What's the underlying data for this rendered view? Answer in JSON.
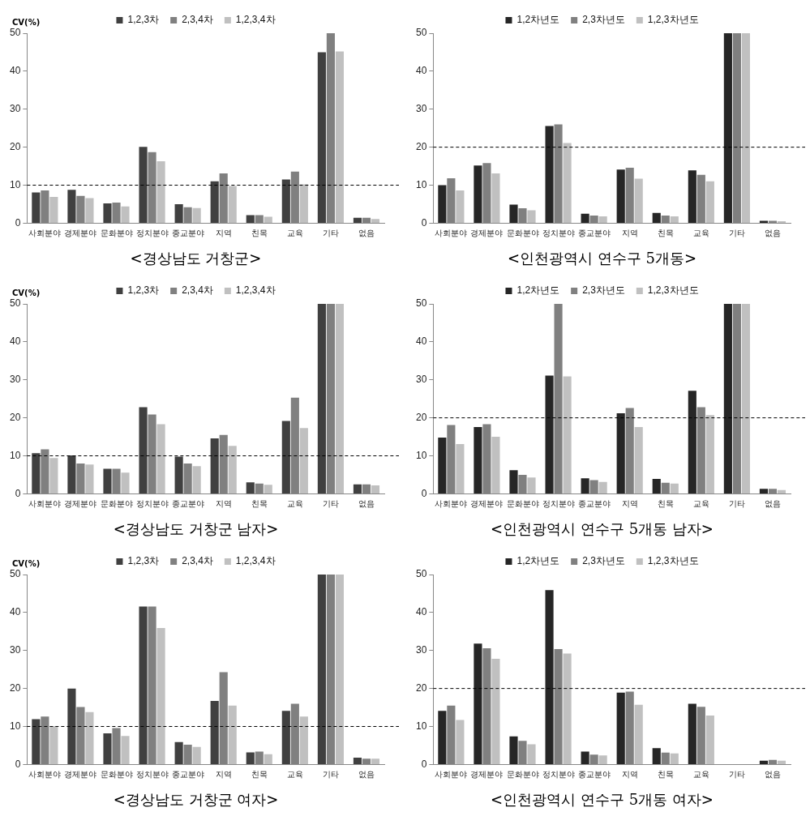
{
  "chart_data": [
    {
      "type": "bar",
      "title": "<경상남도 거창군>",
      "ylabel": "CV(%)",
      "categories": [
        "사회분야",
        "경제분야",
        "문화분야",
        "정치분야",
        "종교분야",
        "지역",
        "친목",
        "교육",
        "기타",
        "없음"
      ],
      "series": [
        {
          "name": "1,2,3차",
          "color": "#404040",
          "values": [
            8.1,
            8.8,
            5.2,
            20.1,
            5.0,
            11.0,
            2.1,
            11.5,
            45,
            1.4
          ]
        },
        {
          "name": "2,3,4차",
          "color": "#808080",
          "values": [
            8.6,
            7.2,
            5.4,
            18.7,
            4.2,
            13.1,
            2.1,
            13.6,
            50,
            1.4
          ]
        },
        {
          "name": "1,2,3,4차",
          "color": "#c0c0c0",
          "values": [
            6.9,
            6.6,
            4.4,
            16.3,
            4.0,
            9.8,
            1.7,
            10.2,
            45.2,
            1.1
          ]
        }
      ],
      "ylim": [
        0,
        50
      ],
      "yticks": [
        0,
        10,
        20,
        30,
        40,
        50
      ],
      "grid": false,
      "legend": "top",
      "ref_lines": [
        {
          "axis": "y",
          "value": 10,
          "line_style": "dashed",
          "color": "#000000"
        }
      ]
    },
    {
      "type": "bar",
      "title": "<인천광역시 연수구 5개동>",
      "categories": [
        "사회분야",
        "경제분야",
        "문화분야",
        "정치분야",
        "종교분야",
        "지역",
        "친목",
        "교육",
        "기타",
        "없음"
      ],
      "series": [
        {
          "name": "1,2차년도",
          "color": "#262626",
          "values": [
            10.0,
            15.2,
            4.9,
            25.6,
            2.5,
            14.1,
            2.7,
            13.9,
            50,
            0.6
          ]
        },
        {
          "name": "2,3차년도",
          "color": "#808080",
          "values": [
            11.8,
            15.8,
            3.9,
            26.0,
            2.0,
            14.6,
            2.0,
            12.7,
            50,
            0.6
          ]
        },
        {
          "name": "1,2,3차년도",
          "color": "#c0c0c0",
          "values": [
            8.6,
            13.1,
            3.4,
            21.1,
            1.8,
            11.7,
            1.8,
            11.0,
            50,
            0.5
          ]
        }
      ],
      "ylim": [
        0,
        50
      ],
      "yticks": [
        0,
        10,
        20,
        30,
        40,
        50
      ],
      "grid": false,
      "legend": "top",
      "ref_lines": [
        {
          "axis": "y",
          "value": 20,
          "line_style": "dashed",
          "color": "#000000"
        }
      ]
    },
    {
      "type": "bar",
      "title": "<경상남도 거창군 남자>",
      "ylabel": "CV(%)",
      "categories": [
        "사회분야",
        "경제분야",
        "문화분야",
        "정치분야",
        "종교분야",
        "지역",
        "친목",
        "교육",
        "기타",
        "없음"
      ],
      "series": [
        {
          "name": "1,2,3차",
          "color": "#404040",
          "values": [
            10.7,
            10.1,
            6.6,
            22.8,
            9.8,
            14.6,
            3.0,
            19.2,
            50,
            2.5
          ]
        },
        {
          "name": "2,3,4차",
          "color": "#808080",
          "values": [
            11.7,
            8.0,
            6.6,
            20.9,
            8.0,
            15.5,
            2.7,
            25.3,
            50,
            2.5
          ]
        },
        {
          "name": "1,2,3,4차",
          "color": "#c0c0c0",
          "values": [
            9.4,
            7.7,
            5.6,
            18.3,
            7.3,
            12.6,
            2.4,
            17.3,
            50,
            2.2
          ]
        }
      ],
      "ylim": [
        0,
        50
      ],
      "yticks": [
        0,
        10,
        20,
        30,
        40,
        50
      ],
      "grid": false,
      "legend": "top",
      "ref_lines": [
        {
          "axis": "y",
          "value": 10,
          "line_style": "dashed",
          "color": "#000000"
        }
      ]
    },
    {
      "type": "bar",
      "title": "<인천광역시 연수구 5개동 남자>",
      "categories": [
        "사회분야",
        "경제분야",
        "문화분야",
        "정치분야",
        "종교분야",
        "지역",
        "친목",
        "교육",
        "기타",
        "없음"
      ],
      "series": [
        {
          "name": "1,2차년도",
          "color": "#262626",
          "values": [
            14.8,
            17.6,
            6.2,
            31.1,
            4.1,
            21.2,
            3.9,
            27.1,
            50,
            1.3
          ]
        },
        {
          "name": "2,3차년도",
          "color": "#808080",
          "values": [
            18.1,
            18.3,
            5.0,
            50,
            3.6,
            22.6,
            2.9,
            22.8,
            50,
            1.3
          ]
        },
        {
          "name": "1,2,3차년도",
          "color": "#c0c0c0",
          "values": [
            13.1,
            15.0,
            4.3,
            30.9,
            3.1,
            17.6,
            2.7,
            20.7,
            50,
            1.0
          ]
        }
      ],
      "ylim": [
        0,
        50
      ],
      "yticks": [
        0,
        10,
        20,
        30,
        40,
        50
      ],
      "grid": false,
      "legend": "top",
      "ref_lines": [
        {
          "axis": "y",
          "value": 20,
          "line_style": "dashed",
          "color": "#000000"
        }
      ]
    },
    {
      "type": "bar",
      "title": "<경상남도 거창군 여자>",
      "ylabel": "CV(%)",
      "categories": [
        "사회분야",
        "경제분야",
        "문화분야",
        "정치분야",
        "종교분야",
        "지역",
        "친목",
        "교육",
        "기타",
        "없음"
      ],
      "series": [
        {
          "name": "1,2,3차",
          "color": "#404040",
          "values": [
            11.9,
            20.0,
            8.2,
            41.6,
            5.9,
            16.7,
            3.2,
            14.1,
            50,
            1.8
          ]
        },
        {
          "name": "2,3,4차",
          "color": "#808080",
          "values": [
            12.6,
            15.1,
            9.6,
            41.6,
            5.2,
            24.3,
            3.4,
            16.0,
            50,
            1.5
          ]
        },
        {
          "name": "1,2,3,4차",
          "color": "#c0c0c0",
          "values": [
            10.1,
            13.8,
            7.5,
            35.9,
            4.6,
            15.5,
            2.7,
            12.6,
            50,
            1.5
          ]
        }
      ],
      "ylim": [
        0,
        50
      ],
      "yticks": [
        0,
        10,
        20,
        30,
        40,
        50
      ],
      "grid": false,
      "legend": "top",
      "ref_lines": [
        {
          "axis": "y",
          "value": 10,
          "line_style": "dashed",
          "color": "#000000"
        }
      ]
    },
    {
      "type": "bar",
      "title": "<인천광역시 연수구 5개동 여자>",
      "categories": [
        "사회분야",
        "경제분야",
        "문화분야",
        "정치분야",
        "종교분야",
        "지역",
        "친목",
        "교육",
        "기타",
        "없음"
      ],
      "series": [
        {
          "name": "1,2차년도",
          "color": "#262626",
          "values": [
            14.1,
            31.8,
            7.4,
            45.9,
            3.4,
            18.9,
            4.3,
            16.0,
            null,
            1.0
          ]
        },
        {
          "name": "2,3차년도",
          "color": "#808080",
          "values": [
            15.5,
            30.6,
            6.2,
            30.4,
            2.6,
            19.2,
            3.1,
            15.2,
            null,
            1.2
          ]
        },
        {
          "name": "1,2,3차년도",
          "color": "#c0c0c0",
          "values": [
            11.7,
            27.8,
            5.3,
            29.2,
            2.4,
            15.7,
            2.9,
            12.9,
            null,
            1.0
          ]
        }
      ],
      "ylim": [
        0,
        50
      ],
      "yticks": [
        0,
        10,
        20,
        30,
        40,
        50
      ],
      "grid": false,
      "legend": "top",
      "ref_lines": [
        {
          "axis": "y",
          "value": 20,
          "line_style": "dashed",
          "color": "#000000"
        }
      ]
    }
  ]
}
